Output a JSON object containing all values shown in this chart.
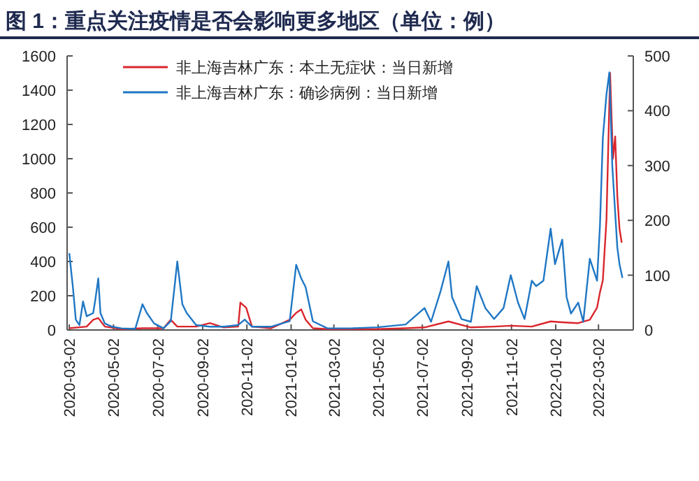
{
  "chart_data": {
    "type": "line",
    "title": "图 1：重点关注疫情是否会影响更多地区（单位：例）",
    "legend": "top",
    "xlim": [
      "2020-02-28",
      "2022-04-19"
    ],
    "xticks": [
      "2020-03-02",
      "2020-05-02",
      "2020-07-02",
      "2020-09-02",
      "2020-11-02",
      "2021-01-02",
      "2021-03-02",
      "2021-05-02",
      "2021-07-02",
      "2021-09-02",
      "2021-11-02",
      "2022-01-02",
      "2022-03-02"
    ],
    "ylim": [
      0,
      1600
    ],
    "yticks": [
      0,
      200,
      400,
      600,
      800,
      1000,
      1200,
      1400,
      1600
    ],
    "y2lim": [
      0,
      500
    ],
    "y2ticks": [
      0,
      100,
      200,
      300,
      400,
      500
    ],
    "series": [
      {
        "name": "非上海吉林广东：本土无症状：当日新增",
        "color": "#d9262c",
        "x": [
          "2020-03-02",
          "2020-03-26",
          "2020-04-04",
          "2020-04-11",
          "2020-04-20",
          "2020-05-13",
          "2020-06-11",
          "2020-07-10",
          "2020-07-20",
          "2020-07-29",
          "2020-08-24",
          "2020-09-12",
          "2020-10-01",
          "2020-10-21",
          "2020-10-24",
          "2020-11-01",
          "2020-11-09",
          "2020-12-05",
          "2020-12-31",
          "2021-01-09",
          "2021-01-16",
          "2021-01-22",
          "2021-02-01",
          "2021-02-21",
          "2021-03-25",
          "2021-05-01",
          "2021-06-09",
          "2021-07-05",
          "2021-08-07",
          "2021-09-07",
          "2021-10-09",
          "2021-11-01",
          "2021-11-30",
          "2021-12-26",
          "2022-01-11",
          "2022-02-02",
          "2022-02-18",
          "2022-02-28",
          "2022-03-04",
          "2022-03-08",
          "2022-03-13",
          "2022-03-18",
          "2022-03-22",
          "2022-03-25",
          "2022-03-28",
          "2022-03-31",
          "2022-04-03"
        ],
        "values": [
          10,
          20,
          60,
          70,
          20,
          5,
          10,
          10,
          60,
          20,
          20,
          40,
          15,
          20,
          160,
          130,
          20,
          10,
          60,
          100,
          120,
          60,
          10,
          5,
          5,
          5,
          10,
          15,
          50,
          15,
          20,
          25,
          20,
          50,
          45,
          40,
          60,
          130,
          220,
          290,
          645,
          1500,
          1000,
          1130,
          780,
          590,
          510
        ]
      },
      {
        "name": "非上海吉林广东：确诊病例：当日新增",
        "color": "#1f77c4",
        "axis": "y2",
        "x": [
          "2020-03-02",
          "2020-03-07",
          "2020-03-11",
          "2020-03-16",
          "2020-03-21",
          "2020-03-26",
          "2020-04-04",
          "2020-04-07",
          "2020-04-11",
          "2020-04-14",
          "2020-04-20",
          "2020-04-30",
          "2020-05-13",
          "2020-06-01",
          "2020-06-11",
          "2020-06-17",
          "2020-06-27",
          "2020-07-10",
          "2020-07-20",
          "2020-07-29",
          "2020-08-05",
          "2020-08-11",
          "2020-08-24",
          "2020-09-12",
          "2020-10-01",
          "2020-10-21",
          "2020-10-30",
          "2020-11-09",
          "2020-12-05",
          "2020-12-31",
          "2021-01-09",
          "2021-01-16",
          "2021-01-22",
          "2021-02-01",
          "2021-02-21",
          "2021-03-25",
          "2021-05-01",
          "2021-06-09",
          "2021-07-05",
          "2021-07-14",
          "2021-07-27",
          "2021-08-07",
          "2021-08-12",
          "2021-08-25",
          "2021-09-07",
          "2021-09-15",
          "2021-09-27",
          "2021-10-09",
          "2021-10-22",
          "2021-11-01",
          "2021-11-11",
          "2021-11-20",
          "2021-11-30",
          "2021-12-06",
          "2021-12-16",
          "2021-12-26",
          "2022-01-01",
          "2022-01-11",
          "2022-01-17",
          "2022-01-23",
          "2022-02-02",
          "2022-02-09",
          "2022-02-18",
          "2022-02-28",
          "2022-03-04",
          "2022-03-08",
          "2022-03-13",
          "2022-03-17",
          "2022-03-21",
          "2022-03-28",
          "2022-03-31",
          "2022-04-04"
        ],
        "values": [
          140,
          78,
          19,
          9,
          52,
          25,
          31,
          56,
          94,
          31,
          12,
          6,
          3,
          2,
          47,
          31,
          12,
          3,
          16,
          125,
          47,
          31,
          9,
          6,
          6,
          9,
          19,
          6,
          6,
          16,
          119,
          94,
          78,
          16,
          3,
          3,
          5,
          10,
          40,
          15,
          70,
          125,
          60,
          20,
          15,
          80,
          40,
          20,
          40,
          100,
          50,
          20,
          90,
          80,
          90,
          185,
          120,
          165,
          60,
          30,
          50,
          15,
          130,
          90,
          190,
          350,
          430,
          470,
          300,
          150,
          120,
          95
        ]
      }
    ]
  }
}
